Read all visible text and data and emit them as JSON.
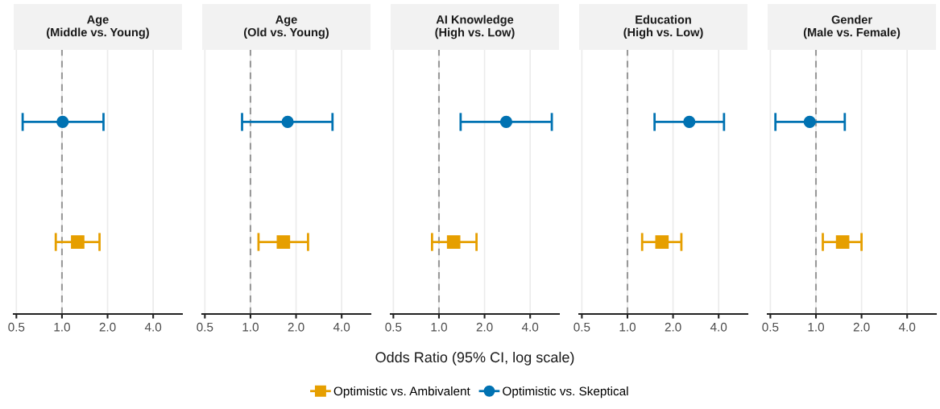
{
  "chart_data": [
    {
      "type": "scatter",
      "orientation": "horizontal",
      "title": "Age\n(Middle vs. Young)",
      "legend": "bottom",
      "categories": [
        null,
        null
      ],
      "log": "x",
      "xlim": [
        0.48,
        6.2
      ],
      "xticks": [
        {
          "value": 0.5,
          "label": "0.5"
        },
        {
          "value": 1,
          "label": "1.0"
        },
        {
          "value": 2,
          "label": "2.0"
        },
        {
          "value": 4,
          "label": "4.0"
        }
      ],
      "grid": "x",
      "tick_labels": "x",
      "ref_lines": [
        {
          "axis": "x",
          "value": 1,
          "color": "#999999",
          "line_style": "dashed"
        }
      ],
      "series": [
        {
          "name": "Optimistic vs. Skeptical",
          "color": "#0072b2",
          "marker": "circle",
          "values": [
            1.01,
            null
          ],
          "errors": [
            [
              0.55,
              1.88
            ],
            null
          ]
        },
        {
          "name": "Optimistic vs. Ambivalent",
          "color": "#e69f00",
          "marker": "square",
          "values": [
            null,
            1.27
          ],
          "errors": [
            null,
            [
              0.91,
              1.77
            ]
          ]
        }
      ]
    },
    {
      "type": "scatter",
      "orientation": "horizontal",
      "title": "Age\n(Old vs. Young)",
      "categories": [
        null,
        null
      ],
      "log": "x",
      "xlim": [
        0.48,
        6.2
      ],
      "xticks": [
        {
          "value": 0.5,
          "label": "0.5"
        },
        {
          "value": 1,
          "label": "1.0"
        },
        {
          "value": 2,
          "label": "2.0"
        },
        {
          "value": 4,
          "label": "4.0"
        }
      ],
      "grid": "x",
      "tick_labels": "x",
      "ref_lines": [
        {
          "axis": "x",
          "value": 1,
          "color": "#999999",
          "line_style": "dashed"
        }
      ],
      "series": [
        {
          "name": "Optimistic vs. Skeptical",
          "color": "#0072b2",
          "marker": "circle",
          "values": [
            1.76,
            null
          ],
          "errors": [
            [
              0.88,
              3.48
            ],
            null
          ]
        },
        {
          "name": "Optimistic vs. Ambivalent",
          "color": "#e69f00",
          "marker": "square",
          "values": [
            null,
            1.65
          ],
          "errors": [
            null,
            [
              1.13,
              2.4
            ]
          ]
        }
      ]
    },
    {
      "type": "scatter",
      "orientation": "horizontal",
      "title": "AI Knowledge\n(High vs. Low)",
      "xlabel": "Odds Ratio (95% CI, log scale)",
      "categories": [
        null,
        null
      ],
      "log": "x",
      "xlim": [
        0.48,
        6.2
      ],
      "xticks": [
        {
          "value": 0.5,
          "label": "0.5"
        },
        {
          "value": 1,
          "label": "1.0"
        },
        {
          "value": 2,
          "label": "2.0"
        },
        {
          "value": 4,
          "label": "4.0"
        }
      ],
      "grid": "x",
      "tick_labels": "x",
      "ref_lines": [
        {
          "axis": "x",
          "value": 1,
          "color": "#999999",
          "line_style": "dashed"
        }
      ],
      "series": [
        {
          "name": "Optimistic vs. Skeptical",
          "color": "#0072b2",
          "marker": "circle",
          "values": [
            2.78,
            null
          ],
          "errors": [
            [
              1.39,
              5.56
            ],
            null
          ]
        },
        {
          "name": "Optimistic vs. Ambivalent",
          "color": "#e69f00",
          "marker": "square",
          "values": [
            null,
            1.25
          ],
          "errors": [
            null,
            [
              0.9,
              1.77
            ]
          ]
        }
      ]
    },
    {
      "type": "scatter",
      "orientation": "horizontal",
      "title": "Education\n(High vs. Low)",
      "categories": [
        null,
        null
      ],
      "log": "x",
      "xlim": [
        0.48,
        6.2
      ],
      "xticks": [
        {
          "value": 0.5,
          "label": "0.5"
        },
        {
          "value": 1,
          "label": "1.0"
        },
        {
          "value": 2,
          "label": "2.0"
        },
        {
          "value": 4,
          "label": "4.0"
        }
      ],
      "grid": "x",
      "tick_labels": "x",
      "ref_lines": [
        {
          "axis": "x",
          "value": 1,
          "color": "#999999",
          "line_style": "dashed"
        }
      ],
      "series": [
        {
          "name": "Optimistic vs. Skeptical",
          "color": "#0072b2",
          "marker": "circle",
          "values": [
            2.56,
            null
          ],
          "errors": [
            [
              1.51,
              4.34
            ],
            null
          ]
        },
        {
          "name": "Optimistic vs. Ambivalent",
          "color": "#e69f00",
          "marker": "square",
          "values": [
            null,
            1.69
          ],
          "errors": [
            null,
            [
              1.25,
              2.27
            ]
          ]
        }
      ]
    },
    {
      "type": "scatter",
      "orientation": "horizontal",
      "title": "Gender\n(Male vs. Female)",
      "categories": [
        null,
        null
      ],
      "log": "x",
      "xlim": [
        0.48,
        6.2
      ],
      "xticks": [
        {
          "value": 0.5,
          "label": "0.5"
        },
        {
          "value": 1,
          "label": "1.0"
        },
        {
          "value": 2,
          "label": "2.0"
        },
        {
          "value": 4,
          "label": "4.0"
        }
      ],
      "grid": "x",
      "tick_labels": "x",
      "ref_lines": [
        {
          "axis": "x",
          "value": 1,
          "color": "#999999",
          "line_style": "dashed"
        }
      ],
      "series": [
        {
          "name": "Optimistic vs. Skeptical",
          "color": "#0072b2",
          "marker": "circle",
          "values": [
            0.91,
            null
          ],
          "errors": [
            [
              0.54,
              1.55
            ],
            null
          ]
        },
        {
          "name": "Optimistic vs. Ambivalent",
          "color": "#e69f00",
          "marker": "square",
          "values": [
            null,
            1.5
          ],
          "errors": [
            null,
            [
              1.11,
              2.0
            ]
          ]
        }
      ]
    }
  ]
}
